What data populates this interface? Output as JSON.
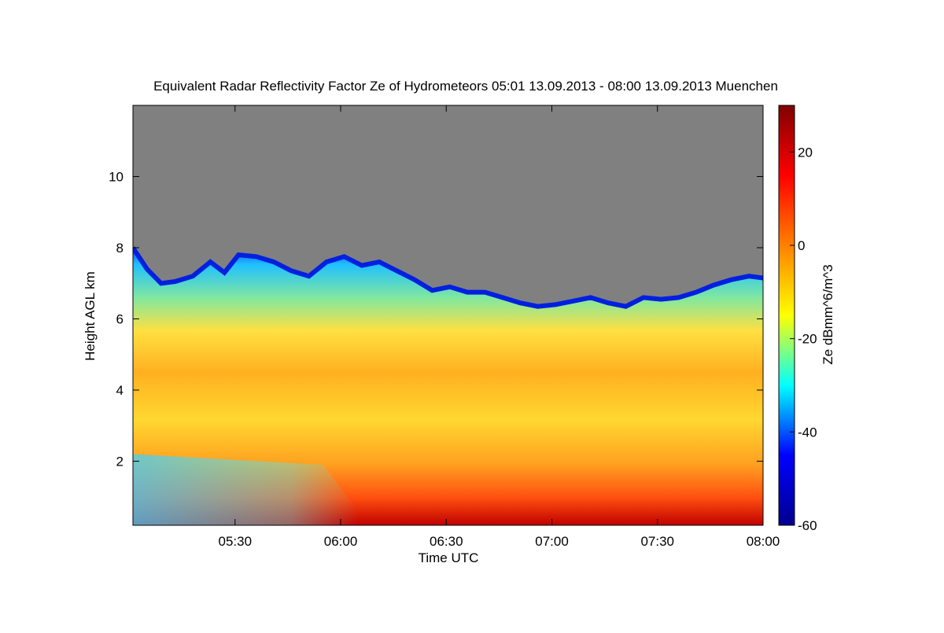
{
  "chart_data": {
    "type": "heatmap",
    "title": "Equivalent Radar Reflectivity Factor Ze of Hydrometeors   05:01 13.09.2013 - 08:00 13.09.2013 Muenchen",
    "xlabel": "Time UTC",
    "ylabel": "Height AGL km",
    "xlim_minutes": [
      301,
      480
    ],
    "ylim": [
      0.2,
      12.0
    ],
    "x_ticks": [
      {
        "value": 330,
        "label": "05:30"
      },
      {
        "value": 360,
        "label": "06:00"
      },
      {
        "value": 390,
        "label": "06:30"
      },
      {
        "value": 420,
        "label": "07:00"
      },
      {
        "value": 450,
        "label": "07:30"
      },
      {
        "value": 480,
        "label": "08:00"
      }
    ],
    "y_ticks": [
      {
        "value": 2,
        "label": "2"
      },
      {
        "value": 4,
        "label": "4"
      },
      {
        "value": 6,
        "label": "6"
      },
      {
        "value": 8,
        "label": "8"
      },
      {
        "value": 10,
        "label": "10"
      }
    ],
    "colorbar": {
      "label": "Ze dBmm^6/m^3",
      "range": [
        -60,
        30
      ],
      "ticks": [
        {
          "value": 20,
          "label": "20"
        },
        {
          "value": 0,
          "label": "0"
        },
        {
          "value": -20,
          "label": "-20"
        },
        {
          "value": -40,
          "label": "-40"
        },
        {
          "value": -60,
          "label": "-60"
        }
      ],
      "colors": [
        "#00008f",
        "#0000ff",
        "#00ffff",
        "#ffff00",
        "#ff8000",
        "#ff0000",
        "#800000"
      ]
    },
    "no_signal_color": "#808080",
    "cloud_top_km": [
      {
        "t": 301,
        "h": 8.0
      },
      {
        "t": 305,
        "h": 7.4
      },
      {
        "t": 309,
        "h": 7.0
      },
      {
        "t": 313,
        "h": 7.05
      },
      {
        "t": 318,
        "h": 7.2
      },
      {
        "t": 323,
        "h": 7.6
      },
      {
        "t": 327,
        "h": 7.3
      },
      {
        "t": 331,
        "h": 7.8
      },
      {
        "t": 336,
        "h": 7.75
      },
      {
        "t": 341,
        "h": 7.6
      },
      {
        "t": 346,
        "h": 7.35
      },
      {
        "t": 351,
        "h": 7.2
      },
      {
        "t": 356,
        "h": 7.6
      },
      {
        "t": 361,
        "h": 7.75
      },
      {
        "t": 366,
        "h": 7.5
      },
      {
        "t": 371,
        "h": 7.6
      },
      {
        "t": 376,
        "h": 7.35
      },
      {
        "t": 381,
        "h": 7.1
      },
      {
        "t": 386,
        "h": 6.8
      },
      {
        "t": 391,
        "h": 6.9
      },
      {
        "t": 396,
        "h": 6.75
      },
      {
        "t": 401,
        "h": 6.75
      },
      {
        "t": 406,
        "h": 6.6
      },
      {
        "t": 411,
        "h": 6.45
      },
      {
        "t": 416,
        "h": 6.35
      },
      {
        "t": 421,
        "h": 6.4
      },
      {
        "t": 426,
        "h": 6.5
      },
      {
        "t": 431,
        "h": 6.6
      },
      {
        "t": 436,
        "h": 6.45
      },
      {
        "t": 441,
        "h": 6.35
      },
      {
        "t": 446,
        "h": 6.6
      },
      {
        "t": 451,
        "h": 6.55
      },
      {
        "t": 456,
        "h": 6.6
      },
      {
        "t": 461,
        "h": 6.75
      },
      {
        "t": 466,
        "h": 6.95
      },
      {
        "t": 471,
        "h": 7.1
      },
      {
        "t": 476,
        "h": 7.2
      },
      {
        "t": 480,
        "h": 7.15
      }
    ]
  }
}
